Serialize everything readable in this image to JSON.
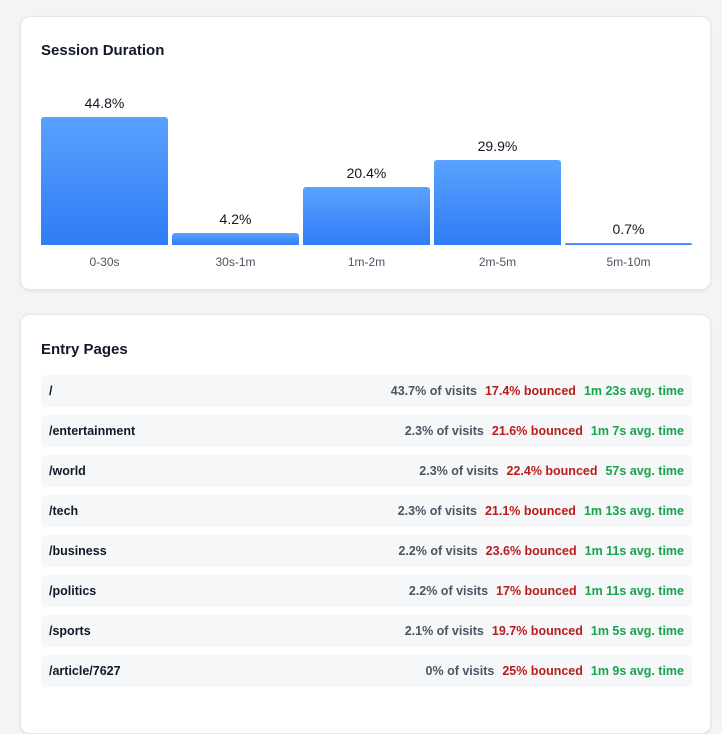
{
  "session_duration": {
    "title": "Session Duration",
    "chart_data": {
      "type": "bar",
      "title": "Session Duration",
      "categories": [
        "0-30s",
        "30s-1m",
        "1m-2m",
        "2m-5m",
        "5m-10m"
      ],
      "values": [
        44.8,
        4.2,
        20.4,
        29.9,
        0.7
      ],
      "value_labels": [
        "44.8%",
        "4.2%",
        "20.4%",
        "29.9%",
        "0.7%"
      ],
      "unit": "%",
      "ylim": [
        0,
        44.8
      ],
      "grid": false,
      "legend": "none",
      "bar_color": "#3b82f6"
    }
  },
  "entry_pages": {
    "title": "Entry Pages",
    "rows": [
      {
        "path": "/",
        "visits": "43.7% of visits",
        "bounced": "17.4% bounced",
        "avg_time": "1m 23s avg. time"
      },
      {
        "path": "/entertainment",
        "visits": "2.3% of visits",
        "bounced": "21.6% bounced",
        "avg_time": "1m 7s avg. time"
      },
      {
        "path": "/world",
        "visits": "2.3% of visits",
        "bounced": "22.4% bounced",
        "avg_time": "57s avg. time"
      },
      {
        "path": "/tech",
        "visits": "2.3% of visits",
        "bounced": "21.1% bounced",
        "avg_time": "1m 13s avg. time"
      },
      {
        "path": "/business",
        "visits": "2.2% of visits",
        "bounced": "23.6% bounced",
        "avg_time": "1m 11s avg. time"
      },
      {
        "path": "/politics",
        "visits": "2.2% of visits",
        "bounced": "17% bounced",
        "avg_time": "1m 11s avg. time"
      },
      {
        "path": "/sports",
        "visits": "2.1% of visits",
        "bounced": "19.7% bounced",
        "avg_time": "1m 5s avg. time"
      },
      {
        "path": "/article/7627",
        "visits": "0% of visits",
        "bounced": "25% bounced",
        "avg_time": "1m 9s avg. time"
      }
    ]
  },
  "colors": {
    "bar": "#3b82f6",
    "bounce": "#b91c1c",
    "time": "#16a34a",
    "row_bg": "#f6f7f9"
  }
}
